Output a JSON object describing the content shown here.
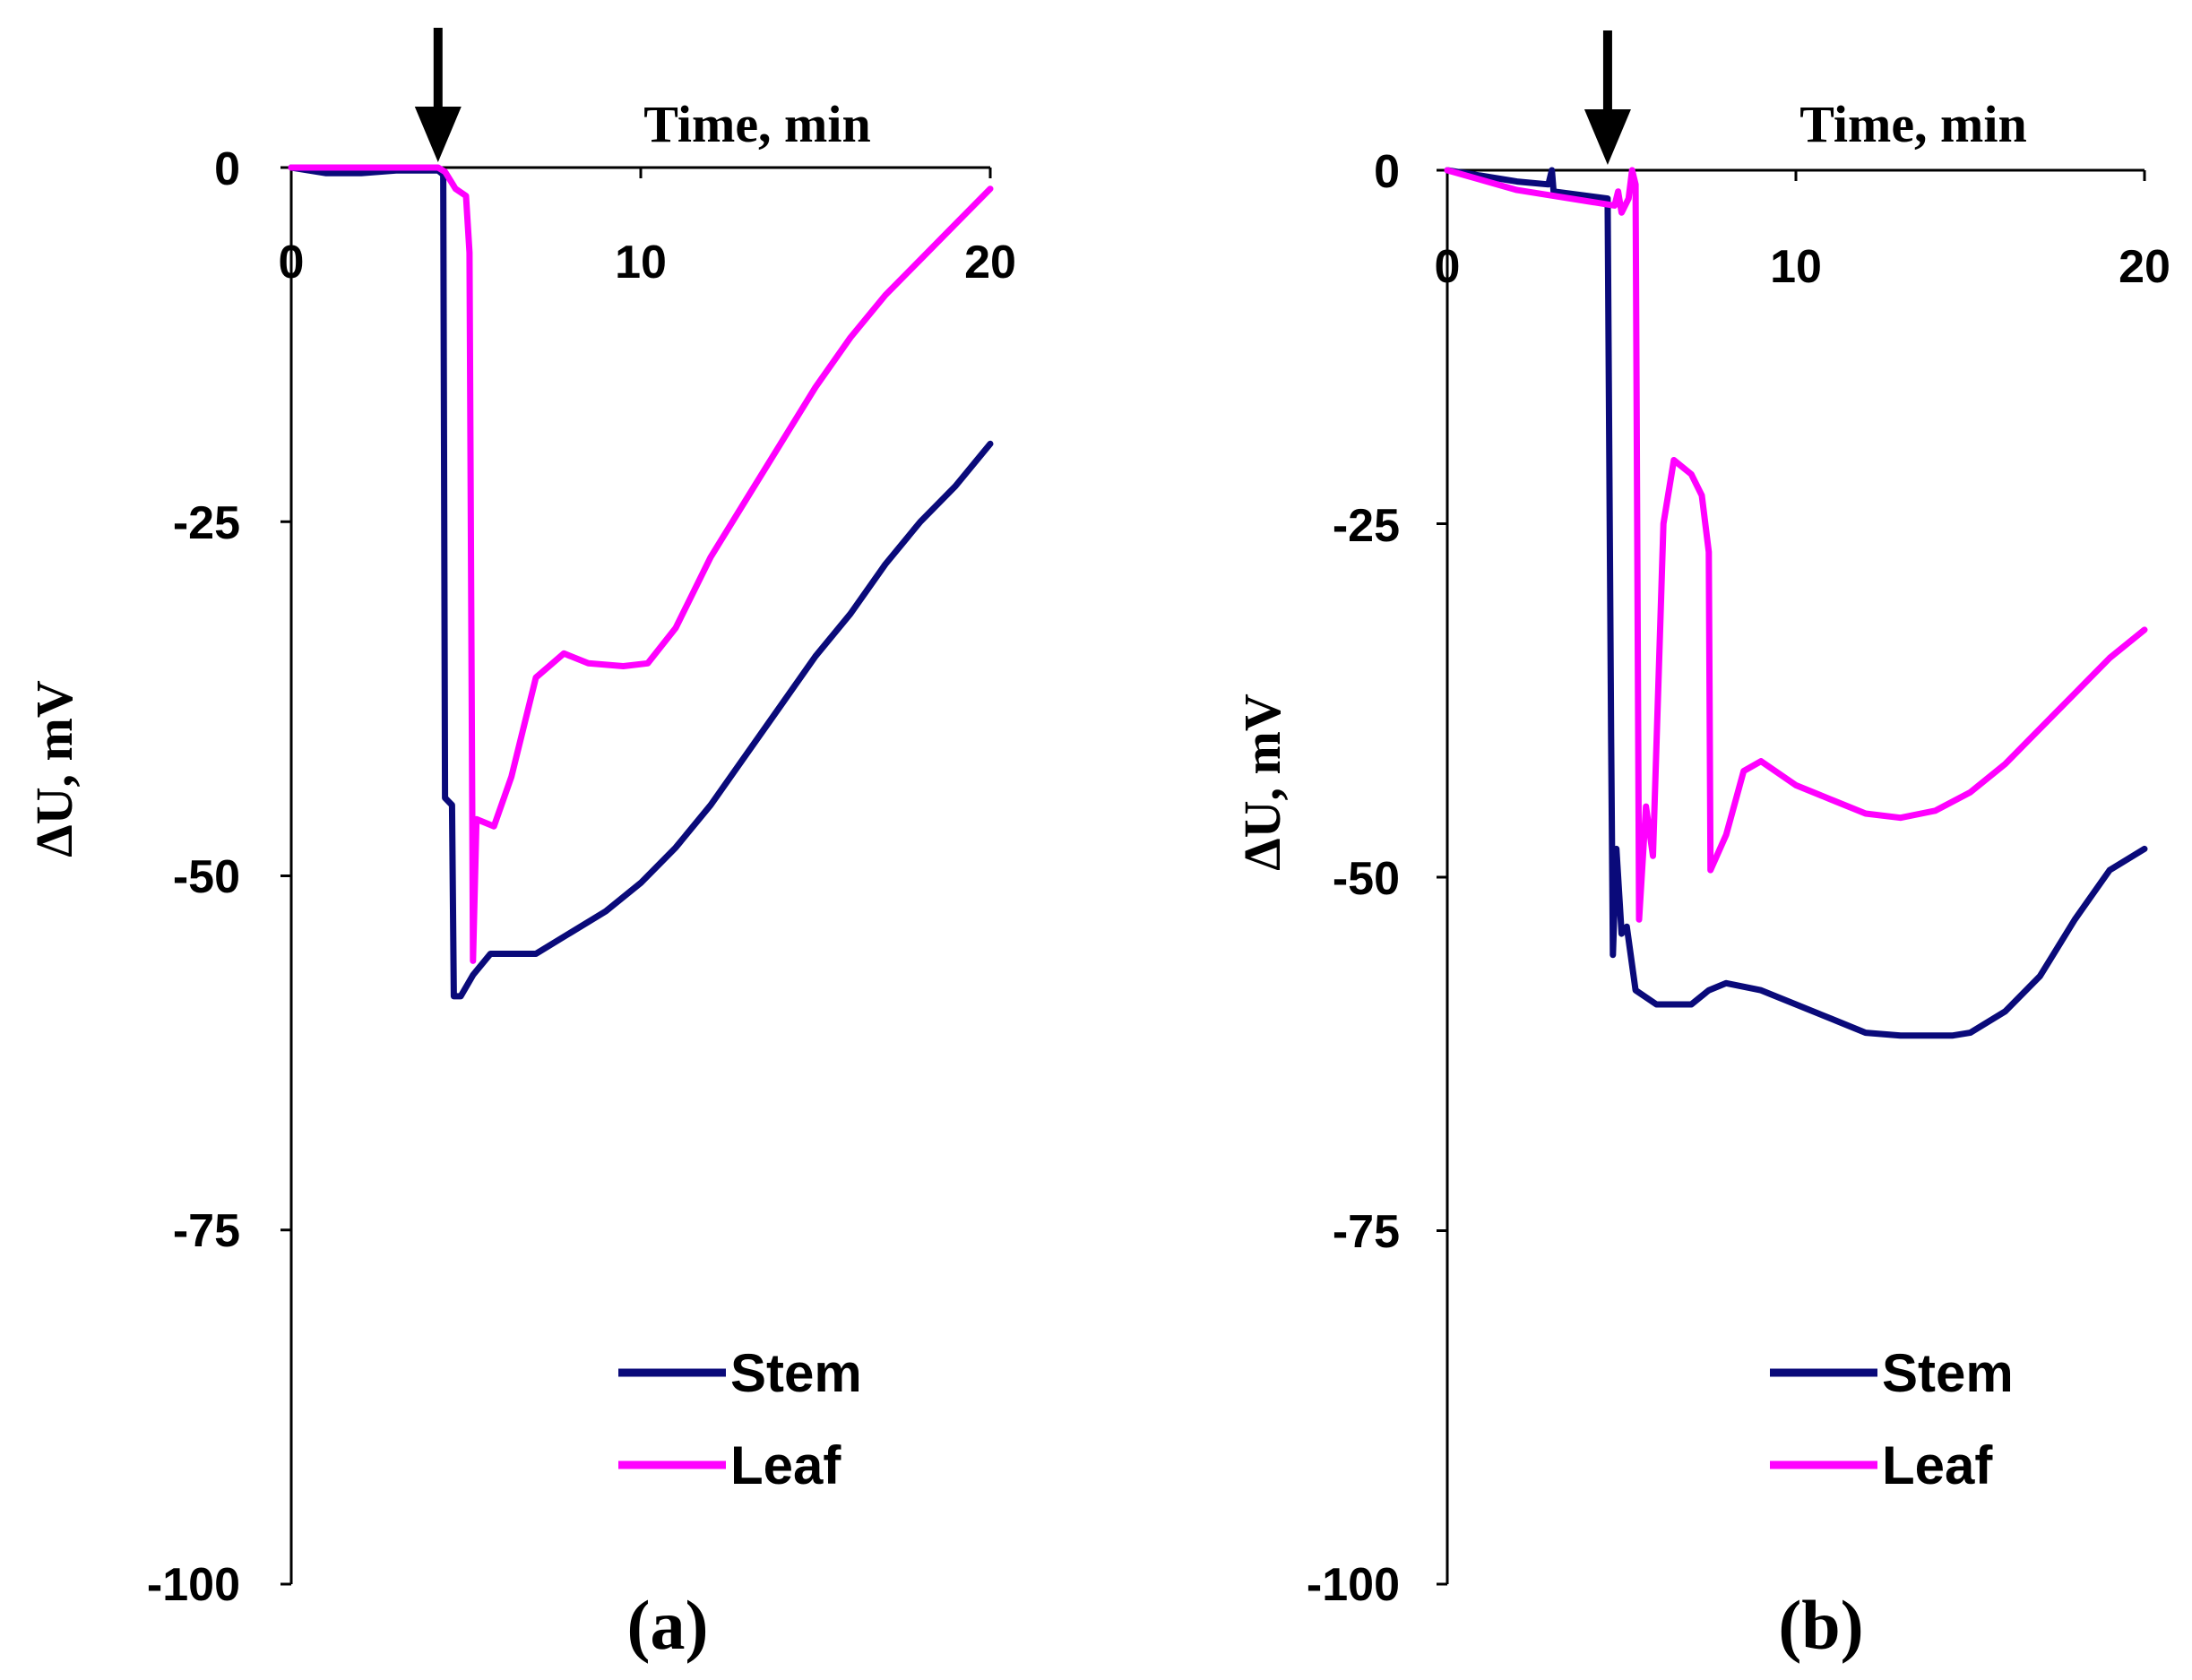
{
  "chart_data": [
    {
      "type": "line",
      "panel_label": "(a)",
      "xlabel": "Time, min",
      "ylabel": "ΔU, mV",
      "xlim": [
        0,
        20
      ],
      "ylim": [
        -100,
        0
      ],
      "xticks": [
        0,
        10,
        20
      ],
      "yticks": [
        0,
        -25,
        -50,
        -75,
        -100
      ],
      "x_tick_labels": [
        "0",
        "10",
        "20"
      ],
      "y_tick_labels": [
        "0",
        "-25",
        "-50",
        "-75",
        "-100"
      ],
      "stimulus_arrow_x": 4.2,
      "legend": [
        "Stem",
        "Leaf"
      ],
      "legend_position": "bottom-right",
      "series": [
        {
          "name": "Stem",
          "color": "#0a0a7a",
          "points": [
            [
              0,
              0
            ],
            [
              1,
              -0.4
            ],
            [
              2,
              -0.4
            ],
            [
              3,
              -0.2
            ],
            [
              4.2,
              -0.2
            ],
            [
              4.35,
              -0.5
            ],
            [
              4.4,
              -44.5
            ],
            [
              4.6,
              -45
            ],
            [
              4.65,
              -58.5
            ],
            [
              4.85,
              -58.5
            ],
            [
              5.2,
              -57
            ],
            [
              5.7,
              -55.5
            ],
            [
              7,
              -55.5
            ],
            [
              8,
              -54
            ],
            [
              9,
              -52.5
            ],
            [
              10,
              -50.5
            ],
            [
              11,
              -48
            ],
            [
              12,
              -45
            ],
            [
              13,
              -41.5
            ],
            [
              14,
              -38
            ],
            [
              15,
              -34.5
            ],
            [
              16,
              -31.5
            ],
            [
              17,
              -28
            ],
            [
              18,
              -25
            ],
            [
              19,
              -22.5
            ],
            [
              20,
              -19.5
            ]
          ]
        },
        {
          "name": "Leaf",
          "color": "#ff00ff",
          "points": [
            [
              0,
              0
            ],
            [
              2,
              0
            ],
            [
              4.2,
              0
            ],
            [
              4.4,
              -0.3
            ],
            [
              4.7,
              -1.5
            ],
            [
              5.0,
              -2
            ],
            [
              5.1,
              -6
            ],
            [
              5.2,
              -56
            ],
            [
              5.3,
              -46
            ],
            [
              5.8,
              -46.5
            ],
            [
              6.3,
              -43
            ],
            [
              7,
              -36
            ],
            [
              7.8,
              -34.3
            ],
            [
              8.5,
              -35
            ],
            [
              9.5,
              -35.2
            ],
            [
              10.2,
              -35
            ],
            [
              11,
              -32.5
            ],
            [
              12,
              -27.5
            ],
            [
              13,
              -23.5
            ],
            [
              14,
              -19.5
            ],
            [
              15,
              -15.5
            ],
            [
              16,
              -12
            ],
            [
              17,
              -9
            ],
            [
              18,
              -6.5
            ],
            [
              19,
              -4
            ],
            [
              20,
              -1.5
            ]
          ]
        }
      ]
    },
    {
      "type": "line",
      "panel_label": "(b)",
      "xlabel": "Time, min",
      "ylabel": "ΔU, mV",
      "xlim": [
        0,
        20
      ],
      "ylim": [
        -100,
        0
      ],
      "xticks": [
        0,
        10,
        20
      ],
      "yticks": [
        0,
        -25,
        -50,
        -75,
        -100
      ],
      "x_tick_labels": [
        "0",
        "10",
        "20"
      ],
      "y_tick_labels": [
        "0",
        "-25",
        "-50",
        "-75",
        "-100"
      ],
      "stimulus_arrow_x": 4.6,
      "legend": [
        "Stem",
        "Leaf"
      ],
      "legend_position": "bottom-right",
      "series": [
        {
          "name": "Stem",
          "color": "#0a0a7a",
          "points": [
            [
              0,
              0
            ],
            [
              2,
              -0.8
            ],
            [
              2.9,
              -1
            ],
            [
              3,
              0
            ],
            [
              3.05,
              -1.5
            ],
            [
              4.6,
              -2
            ],
            [
              4.7,
              -40
            ],
            [
              4.75,
              -55.5
            ],
            [
              4.85,
              -48
            ],
            [
              5.0,
              -54
            ],
            [
              5.15,
              -53.5
            ],
            [
              5.4,
              -58
            ],
            [
              6,
              -59
            ],
            [
              7,
              -59
            ],
            [
              7.5,
              -58
            ],
            [
              8,
              -57.5
            ],
            [
              9,
              -58
            ],
            [
              10,
              -59
            ],
            [
              11,
              -60
            ],
            [
              12,
              -61
            ],
            [
              13,
              -61.2
            ],
            [
              14,
              -61.2
            ],
            [
              14.5,
              -61.2
            ],
            [
              15,
              -61
            ],
            [
              16,
              -59.5
            ],
            [
              17,
              -57
            ],
            [
              17.5,
              -55
            ],
            [
              18,
              -53
            ],
            [
              19,
              -49.5
            ],
            [
              20,
              -48
            ]
          ]
        },
        {
          "name": "Leaf",
          "color": "#ff00ff",
          "points": [
            [
              0,
              0
            ],
            [
              2,
              -1.4
            ],
            [
              4.8,
              -2.5
            ],
            [
              4.9,
              -1.5
            ],
            [
              5.0,
              -3
            ],
            [
              5.2,
              -2
            ],
            [
              5.3,
              0
            ],
            [
              5.4,
              -1
            ],
            [
              5.5,
              -53
            ],
            [
              5.7,
              -45
            ],
            [
              5.9,
              -48.5
            ],
            [
              6.2,
              -25
            ],
            [
              6.5,
              -20.5
            ],
            [
              7,
              -21.5
            ],
            [
              7.3,
              -23
            ],
            [
              7.5,
              -27
            ],
            [
              7.55,
              -49.5
            ],
            [
              8,
              -47
            ],
            [
              8.5,
              -42.5
            ],
            [
              9,
              -41.8
            ],
            [
              10,
              -43.5
            ],
            [
              11,
              -44.5
            ],
            [
              12,
              -45.5
            ],
            [
              13,
              -45.8
            ],
            [
              14,
              -45.3
            ],
            [
              15,
              -44
            ],
            [
              16,
              -42
            ],
            [
              17,
              -39.5
            ],
            [
              18,
              -37
            ],
            [
              19,
              -34.5
            ],
            [
              20,
              -32.5
            ]
          ]
        }
      ]
    }
  ]
}
